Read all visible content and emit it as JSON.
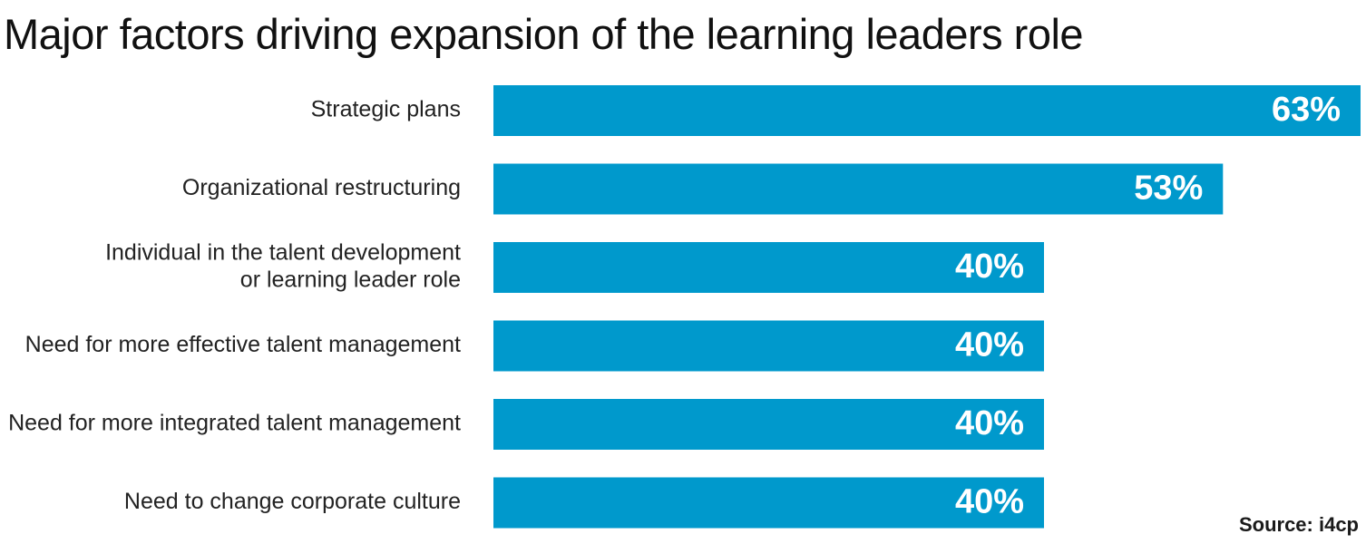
{
  "chart_data": {
    "type": "bar",
    "orientation": "horizontal",
    "title": "Major factors driving expansion of the learning leaders role",
    "categories": [
      [
        "Strategic plans"
      ],
      [
        "Organizational restructuring"
      ],
      [
        "Individual in the talent development",
        "or learning leader role"
      ],
      [
        "Need for more effective talent management"
      ],
      [
        "Need for more integrated talent management"
      ],
      [
        "Need to change corporate culture"
      ]
    ],
    "values": [
      63,
      53,
      40,
      40,
      40,
      40
    ],
    "value_labels": [
      "63%",
      "53%",
      "40%",
      "40%",
      "40%",
      "40%"
    ],
    "xlim": [
      0,
      63
    ],
    "grid": false,
    "legend": "none",
    "bar_color": "#0099CC"
  },
  "source": "Source: i4cp"
}
